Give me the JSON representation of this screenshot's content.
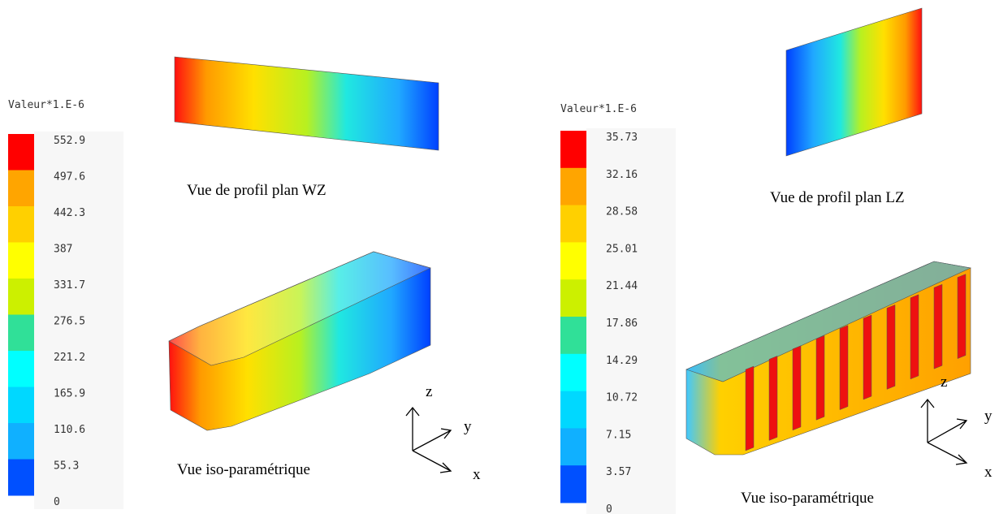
{
  "legends": [
    {
      "title": "Valeur*1.E-6",
      "labels": [
        "552.9",
        "497.6",
        "442.3",
        "387",
        "331.7",
        "276.5",
        "221.2",
        "165.9",
        "110.6",
        "55.3",
        "0"
      ]
    },
    {
      "title": "Valeur*1.E-6",
      "labels": [
        "35.73",
        "32.16",
        "28.58",
        "25.01",
        "21.44",
        "17.86",
        "14.29",
        "10.72",
        "7.15",
        "3.57",
        "0"
      ]
    }
  ],
  "views": [
    {
      "profile_caption": "Vue de profil plan WZ",
      "iso_caption": "Vue iso-paramétrique",
      "axes": {
        "z": "z",
        "y": "y",
        "x": "x"
      }
    },
    {
      "profile_caption": "Vue de profil plan LZ",
      "iso_caption": "Vue iso-paramétrique",
      "axes": {
        "z": "z",
        "y": "y",
        "x": "x"
      }
    }
  ]
}
